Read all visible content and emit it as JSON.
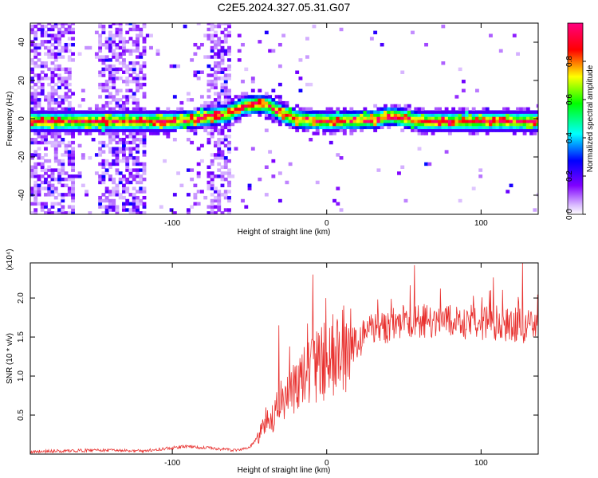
{
  "title": "C2E5.2024.327.05.31.G07",
  "chart_data": [
    {
      "type": "heatmap",
      "xlabel": "Height of straight line (km)",
      "ylabel": "Frequency (Hz)",
      "xlim": [
        -192,
        137
      ],
      "ylim": [
        -50,
        50
      ],
      "xticks": [
        -100,
        0,
        100
      ],
      "yticks": [
        -40,
        -20,
        0,
        20,
        40
      ],
      "xtick_labels": [
        "-100",
        "0",
        "100"
      ],
      "ytick_labels": [
        "-40",
        "-20",
        "0",
        "20",
        "40"
      ],
      "colorbar": {
        "label": "Normalized spectral amplitude",
        "range": [
          0,
          1
        ],
        "ticks": [
          0.0,
          0.2,
          0.4,
          0.6,
          0.8
        ],
        "tick_labels": [
          "0.0",
          "0.2",
          "0.4",
          "0.6",
          "0.8"
        ]
      },
      "center_frequency_profile": [
        {
          "x": -192,
          "f": -2
        },
        {
          "x": -120,
          "f": -2
        },
        {
          "x": -100,
          "f": -2
        },
        {
          "x": -80,
          "f": 0
        },
        {
          "x": -65,
          "f": 2
        },
        {
          "x": -55,
          "f": 6
        },
        {
          "x": -45,
          "f": 7
        },
        {
          "x": -38,
          "f": 6
        },
        {
          "x": -30,
          "f": 2
        },
        {
          "x": -20,
          "f": -1
        },
        {
          "x": 0,
          "f": -2
        },
        {
          "x": 30,
          "f": -1
        },
        {
          "x": 40,
          "f": 1
        },
        {
          "x": 60,
          "f": -2
        },
        {
          "x": 137,
          "f": -2
        }
      ],
      "colors": {
        "spectrum": [
          "#ffffff",
          "#8000ff",
          "#0000ff",
          "#00ffff",
          "#00ff00",
          "#ffff00",
          "#ff0000",
          "#ff0080"
        ]
      }
    },
    {
      "type": "line",
      "xlabel": "Height of straight line (km)",
      "ylabel": "SNR (10 * v/v)",
      "multiplier_label": "(x10⁴)",
      "xlim": [
        -192,
        137
      ],
      "ylim": [
        0,
        2.45
      ],
      "xticks": [
        -100,
        0,
        100
      ],
      "yticks": [
        0.5,
        1.0,
        1.5,
        2.0
      ],
      "xtick_labels": [
        "-100",
        "0",
        "100"
      ],
      "ytick_labels": [
        "0.5",
        "1.0",
        "1.5",
        "2.0"
      ],
      "series": [
        {
          "color": "#e8302e",
          "envelope": [
            {
              "x": -192,
              "y": 0.03
            },
            {
              "x": -150,
              "y": 0.05
            },
            {
              "x": -120,
              "y": 0.04
            },
            {
              "x": -100,
              "y": 0.08
            },
            {
              "x": -90,
              "y": 0.1
            },
            {
              "x": -60,
              "y": 0.05
            },
            {
              "x": -50,
              "y": 0.08
            },
            {
              "x": -40,
              "y": 0.35
            },
            {
              "x": -30,
              "y": 0.65
            },
            {
              "x": -20,
              "y": 0.85
            },
            {
              "x": -10,
              "y": 1.05
            },
            {
              "x": 0,
              "y": 1.2
            },
            {
              "x": 10,
              "y": 1.3
            },
            {
              "x": 20,
              "y": 1.45
            },
            {
              "x": 30,
              "y": 1.6
            },
            {
              "x": 50,
              "y": 1.7
            },
            {
              "x": 80,
              "y": 1.7
            },
            {
              "x": 110,
              "y": 1.68
            },
            {
              "x": 137,
              "y": 1.62
            }
          ],
          "spikes": [
            {
              "x": -31,
              "y": 1.65
            },
            {
              "x": -24,
              "y": 1.38
            },
            {
              "x": -9,
              "y": 2.3
            },
            {
              "x": 57,
              "y": 2.42
            },
            {
              "x": 127,
              "y": 2.45
            }
          ]
        }
      ]
    }
  ]
}
